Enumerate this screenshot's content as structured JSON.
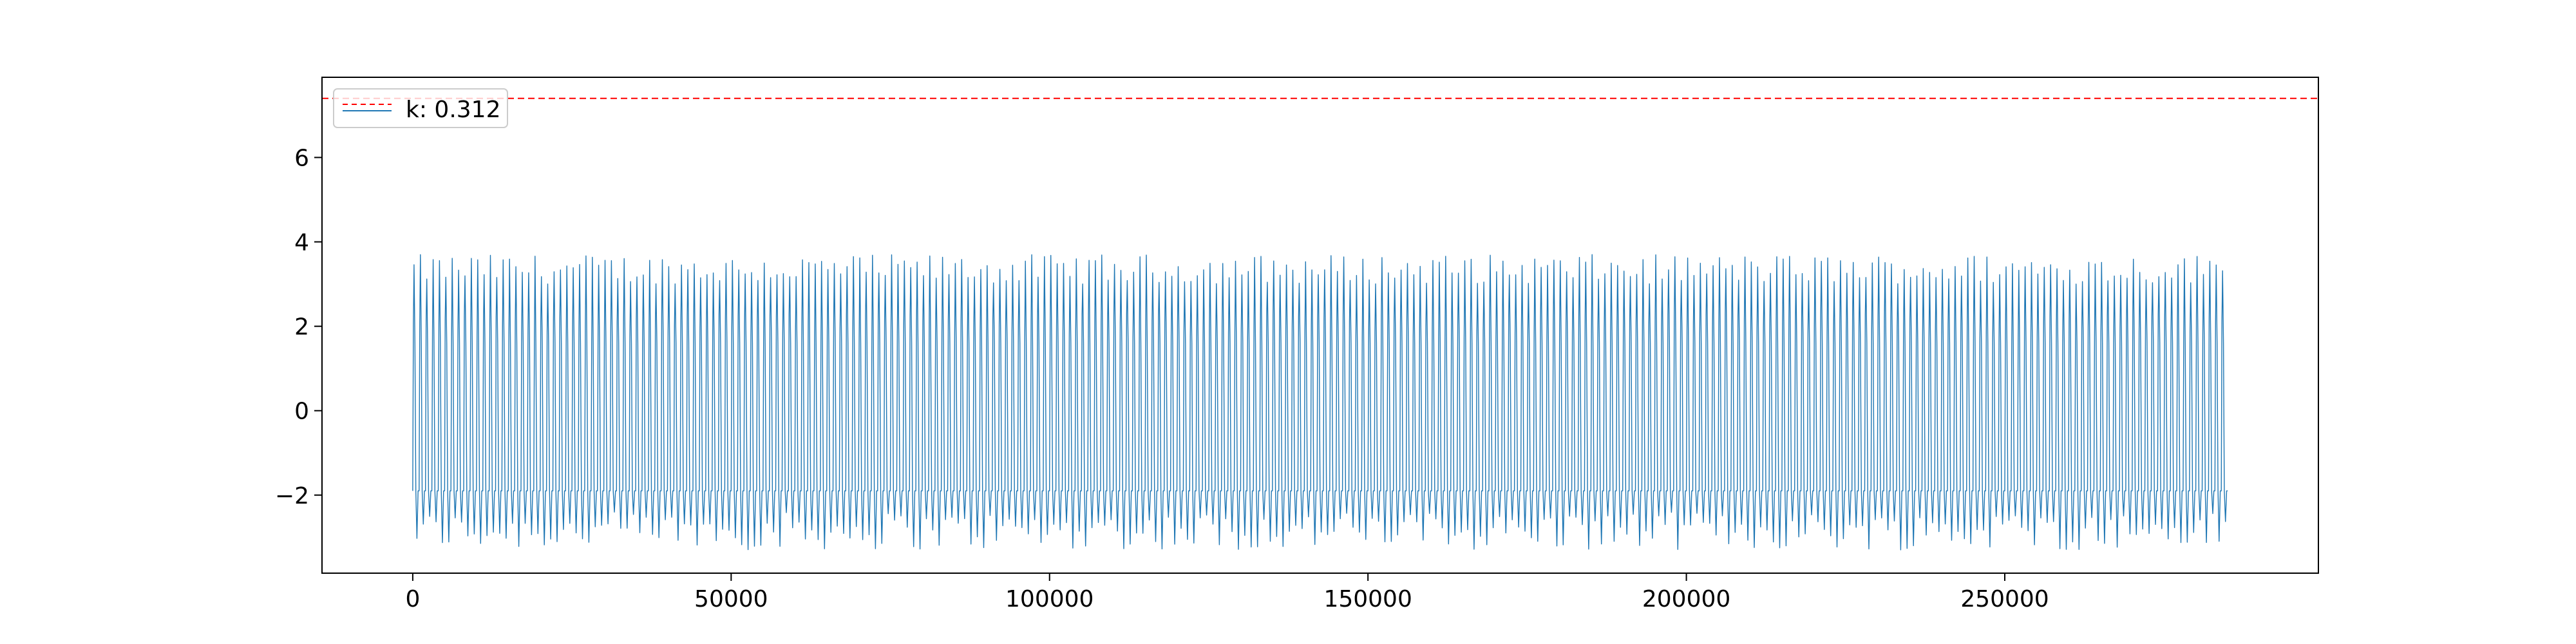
{
  "chart_data": {
    "type": "line",
    "title": "",
    "xlabel": "",
    "ylabel": "",
    "xlim": [
      -14250,
      299250
    ],
    "ylim": [
      -3.85,
      7.9
    ],
    "x_ticks": [
      0,
      50000,
      100000,
      150000,
      200000,
      250000
    ],
    "x_tick_labels": [
      "0",
      "50000",
      "100000",
      "150000",
      "200000",
      "250000"
    ],
    "y_ticks": [
      -2,
      0,
      2,
      4,
      6
    ],
    "y_tick_labels": [
      "−2",
      "0",
      "2",
      "4",
      "6"
    ],
    "grid": false,
    "legend": {
      "placement": "top-left"
    },
    "series": [
      {
        "name": "k: 0.312",
        "color": "#1f77b4",
        "x_start": 0,
        "x_end": 285000,
        "n_cycles": 285,
        "peak_range": [
          3.0,
          3.7
        ],
        "upper_plateau": 2.0,
        "lower_plateau": -1.9,
        "trough_range": [
          -3.3,
          -2.4
        ]
      }
    ],
    "reference_lines": [
      {
        "orientation": "horizontal",
        "y": 7.4,
        "color": "#ff0000",
        "style": "dashed"
      }
    ]
  }
}
